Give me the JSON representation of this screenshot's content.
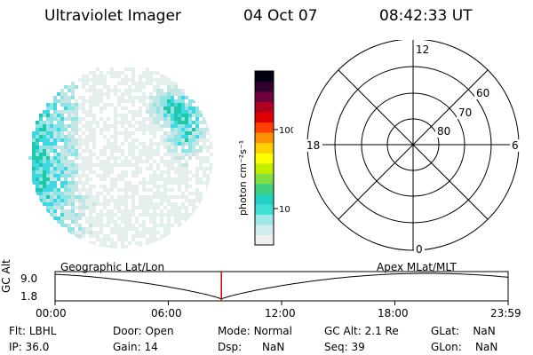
{
  "header": {
    "instrument": "Ultraviolet Imager",
    "date": "04 Oct 07",
    "time": "08:42:33 UT"
  },
  "colorbar": {
    "label": "photon cm⁻²s⁻¹",
    "ticks": [
      "100",
      "10"
    ],
    "colors": [
      "#f0f0f0",
      "#d0ecec",
      "#a0e8e8",
      "#40e0d8",
      "#20d0c0",
      "#40d080",
      "#80e040",
      "#c0f000",
      "#ffff00",
      "#ffd000",
      "#ff9000",
      "#ff4000",
      "#e00000",
      "#b00020",
      "#700040",
      "#300030",
      "#000010"
    ]
  },
  "polar_grid": {
    "mlt_labels": [
      "12",
      "18",
      "6",
      "0"
    ],
    "lat_labels": [
      "60",
      "70",
      "80"
    ]
  },
  "orbit_plot": {
    "ylabel": "GC Alt",
    "y_ticks": [
      "9.0",
      "1.8"
    ],
    "left_title": "Geographic Lat/Lon",
    "right_title": "Apex MLat/MLT",
    "x_ticks": [
      "00:00",
      "06:00",
      "12:00",
      "18:00",
      "23:59"
    ],
    "current_time_fraction": 0.367
  },
  "status": {
    "row1": [
      {
        "key": "Flt:",
        "value": "LBHL"
      },
      {
        "key": "Door:",
        "value": "Open"
      },
      {
        "key": "Mode:",
        "value": "Normal"
      },
      {
        "key": "GC Alt:",
        "value": "2.1 Re"
      },
      {
        "key": "GLat:",
        "value": "NaN"
      }
    ],
    "row2": [
      {
        "key": "IP:",
        "value": "36.0"
      },
      {
        "key": "Gain:",
        "value": "14"
      },
      {
        "key": "Dsp:",
        "value": "NaN"
      },
      {
        "key": "Seq:",
        "value": "39"
      },
      {
        "key": "GLon:",
        "value": "NaN"
      }
    ]
  }
}
